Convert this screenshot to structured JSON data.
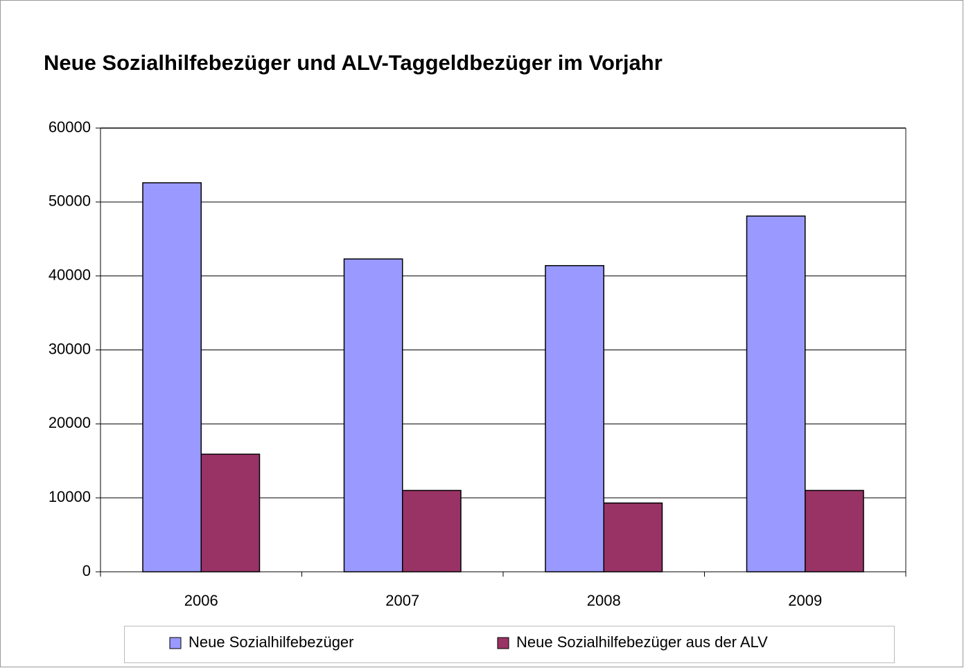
{
  "chart_data": {
    "type": "bar",
    "title": "Neue Sozialhilfebezüger und ALV-Taggeldbezüger im Vorjahr",
    "categories": [
      "2006",
      "2007",
      "2008",
      "2009"
    ],
    "series": [
      {
        "name": "Neue Sozialhilfebezüger",
        "color": "#9999ff",
        "values": [
          52600,
          42300,
          41400,
          48100
        ]
      },
      {
        "name": "Neue Sozialhilfebezüger aus der ALV",
        "color": "#993366",
        "values": [
          15900,
          11000,
          9300,
          11000
        ]
      }
    ],
    "ylim": [
      0,
      60000
    ],
    "yticks": [
      0,
      10000,
      20000,
      30000,
      40000,
      50000,
      60000
    ],
    "grid": true,
    "legend": "bottom"
  }
}
